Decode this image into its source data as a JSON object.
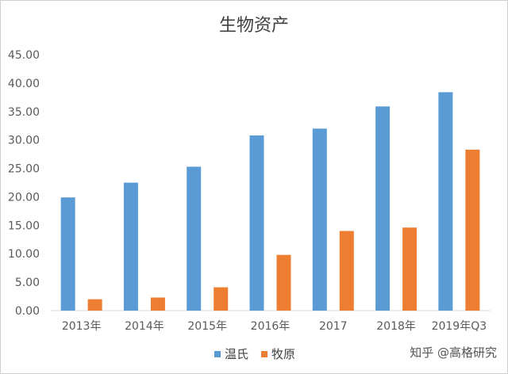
{
  "chart_data": {
    "type": "bar",
    "title": "生物资产",
    "categories": [
      "2013年",
      "2014年",
      "2015年",
      "2016年",
      "2017",
      "2018年",
      "2019年Q3"
    ],
    "series": [
      {
        "name": "温氏",
        "color": "#5b9bd5",
        "values": [
          19.9,
          22.5,
          25.3,
          30.8,
          32.0,
          35.9,
          38.4
        ]
      },
      {
        "name": "牧原",
        "color": "#ed7d31",
        "values": [
          2.0,
          2.3,
          4.1,
          9.8,
          14.0,
          14.6,
          28.3
        ]
      }
    ],
    "ylim": [
      0,
      45
    ],
    "yticks": [
      "0.00",
      "5.00",
      "10.00",
      "15.00",
      "20.00",
      "25.00",
      "30.00",
      "35.00",
      "40.00",
      "45.00"
    ],
    "grid": false,
    "legend_position": "bottom"
  },
  "watermark": "知乎 @高格研究"
}
